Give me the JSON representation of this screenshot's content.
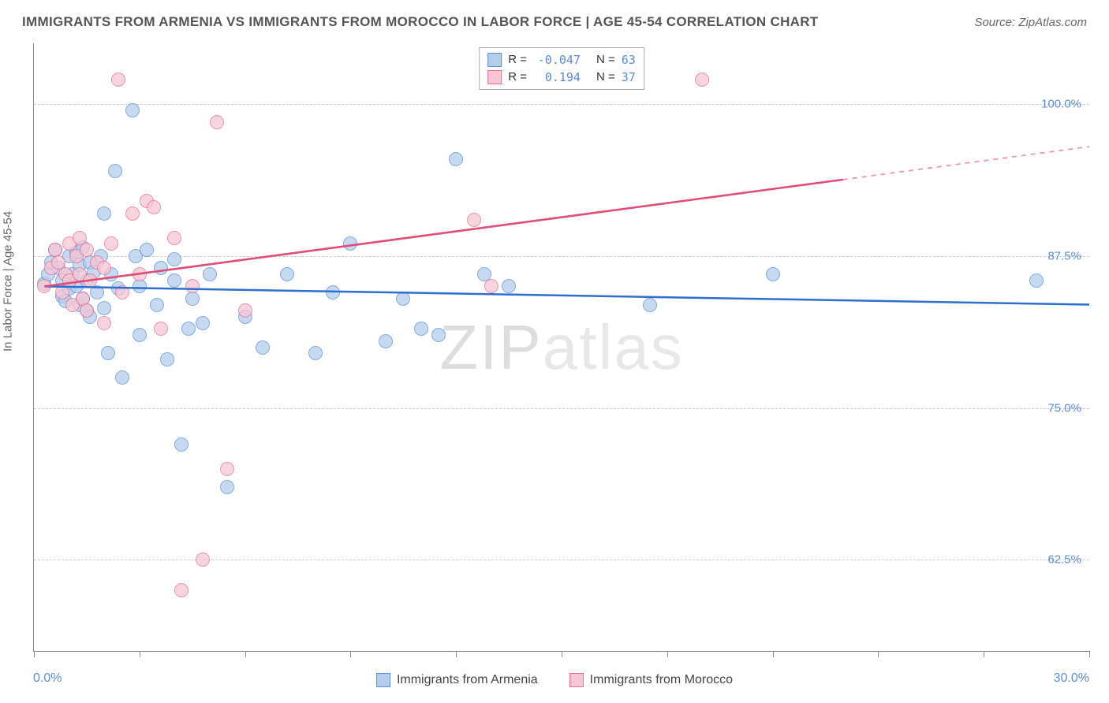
{
  "title": "IMMIGRANTS FROM ARMENIA VS IMMIGRANTS FROM MOROCCO IN LABOR FORCE | AGE 45-54 CORRELATION CHART",
  "source": "Source: ZipAtlas.com",
  "watermark": {
    "part1": "ZIP",
    "part2": "atlas"
  },
  "chart": {
    "type": "scatter",
    "background_color": "#ffffff",
    "grid_color": "#cccccc",
    "axis_color": "#888888",
    "label_color": "#5b8bd4",
    "xlim": [
      0,
      30
    ],
    "ylim": [
      55,
      105
    ],
    "x_ticks": [
      0,
      3,
      6,
      9,
      12,
      15,
      18,
      21,
      24,
      27,
      30
    ],
    "x_tick_labels": {
      "0": "0.0%",
      "30": "30.0%"
    },
    "y_gridlines": [
      62.5,
      75.0,
      87.5,
      100.0
    ],
    "y_tick_labels": [
      "62.5%",
      "75.0%",
      "87.5%",
      "100.0%"
    ],
    "y_axis_title": "In Labor Force | Age 45-54",
    "marker_radius": 9,
    "marker_border_width": 1.5,
    "series": [
      {
        "name": "Immigrants from Armenia",
        "fill_color": "#b4cdeb",
        "stroke_color": "#5a8fd6",
        "line_color": "#2d6fd0",
        "line_width": 2.5,
        "R": "-0.047",
        "N": "63",
        "trend": {
          "x1": 0.3,
          "y1": 85.0,
          "x2": 30,
          "y2": 83.5,
          "solid_until": 30
        },
        "points": [
          [
            0.3,
            85.2
          ],
          [
            0.4,
            86.0
          ],
          [
            0.5,
            87.0
          ],
          [
            0.6,
            88.0
          ],
          [
            0.7,
            86.5
          ],
          [
            0.8,
            85.5
          ],
          [
            0.8,
            84.2
          ],
          [
            0.9,
            83.8
          ],
          [
            1.0,
            87.5
          ],
          [
            1.0,
            84.8
          ],
          [
            1.1,
            86.0
          ],
          [
            1.2,
            87.8
          ],
          [
            1.2,
            85.0
          ],
          [
            1.3,
            83.5
          ],
          [
            1.3,
            86.8
          ],
          [
            1.4,
            88.2
          ],
          [
            1.4,
            84.0
          ],
          [
            1.5,
            85.5
          ],
          [
            1.5,
            83.0
          ],
          [
            1.6,
            87.0
          ],
          [
            1.6,
            82.5
          ],
          [
            1.7,
            86.2
          ],
          [
            1.8,
            84.5
          ],
          [
            1.9,
            87.5
          ],
          [
            2.0,
            91.0
          ],
          [
            2.0,
            83.2
          ],
          [
            2.1,
            79.5
          ],
          [
            2.2,
            86.0
          ],
          [
            2.3,
            94.5
          ],
          [
            2.4,
            84.8
          ],
          [
            2.5,
            77.5
          ],
          [
            2.8,
            99.5
          ],
          [
            2.9,
            87.5
          ],
          [
            3.0,
            85.0
          ],
          [
            3.0,
            81.0
          ],
          [
            3.2,
            88.0
          ],
          [
            3.5,
            83.5
          ],
          [
            3.6,
            86.5
          ],
          [
            3.8,
            79.0
          ],
          [
            4.0,
            85.5
          ],
          [
            4.0,
            87.2
          ],
          [
            4.2,
            72.0
          ],
          [
            4.4,
            81.5
          ],
          [
            4.5,
            84.0
          ],
          [
            4.8,
            82.0
          ],
          [
            5.0,
            86.0
          ],
          [
            5.5,
            68.5
          ],
          [
            6.0,
            82.5
          ],
          [
            6.5,
            80.0
          ],
          [
            7.2,
            86.0
          ],
          [
            8.0,
            79.5
          ],
          [
            8.5,
            84.5
          ],
          [
            9.0,
            88.5
          ],
          [
            10.0,
            80.5
          ],
          [
            10.5,
            84.0
          ],
          [
            11.0,
            81.5
          ],
          [
            11.5,
            81.0
          ],
          [
            12.0,
            95.5
          ],
          [
            12.8,
            86.0
          ],
          [
            13.5,
            85.0
          ],
          [
            17.5,
            83.5
          ],
          [
            21.0,
            86.0
          ],
          [
            28.5,
            85.5
          ]
        ]
      },
      {
        "name": "Immigrants from Morocco",
        "fill_color": "#f6c6d4",
        "stroke_color": "#e86e92",
        "line_color": "#e14b77",
        "line_width": 2.5,
        "R": "0.194",
        "N": "37",
        "trend": {
          "x1": 0.3,
          "y1": 85.0,
          "x2": 30,
          "y2": 96.5,
          "solid_until": 23
        },
        "points": [
          [
            0.3,
            85.0
          ],
          [
            0.5,
            86.5
          ],
          [
            0.6,
            88.0
          ],
          [
            0.7,
            87.0
          ],
          [
            0.8,
            84.5
          ],
          [
            0.9,
            86.0
          ],
          [
            1.0,
            88.5
          ],
          [
            1.0,
            85.5
          ],
          [
            1.1,
            83.5
          ],
          [
            1.2,
            87.5
          ],
          [
            1.3,
            86.0
          ],
          [
            1.3,
            89.0
          ],
          [
            1.4,
            84.0
          ],
          [
            1.5,
            88.0
          ],
          [
            1.5,
            83.0
          ],
          [
            1.6,
            85.5
          ],
          [
            1.8,
            87.0
          ],
          [
            2.0,
            82.0
          ],
          [
            2.0,
            86.5
          ],
          [
            2.2,
            88.5
          ],
          [
            2.4,
            102.0
          ],
          [
            2.5,
            84.5
          ],
          [
            2.8,
            91.0
          ],
          [
            3.0,
            86.0
          ],
          [
            3.2,
            92.0
          ],
          [
            3.4,
            91.5
          ],
          [
            3.6,
            81.5
          ],
          [
            4.0,
            89.0
          ],
          [
            4.2,
            60.0
          ],
          [
            4.5,
            85.0
          ],
          [
            4.8,
            62.5
          ],
          [
            5.2,
            98.5
          ],
          [
            5.5,
            70.0
          ],
          [
            6.0,
            83.0
          ],
          [
            12.5,
            90.5
          ],
          [
            13.0,
            85.0
          ],
          [
            19.0,
            102.0
          ]
        ]
      }
    ],
    "legend_top": {
      "border_color": "#aaaaaa",
      "rows": [
        {
          "swatch_fill": "#b4cdeb",
          "swatch_border": "#5a8fd6",
          "R_label": "R =",
          "R_val": "-0.047",
          "N_label": "N =",
          "N_val": "63"
        },
        {
          "swatch_fill": "#f6c6d4",
          "swatch_border": "#e86e92",
          "R_label": "R =",
          "R_val": " 0.194",
          "N_label": "N =",
          "N_val": "37"
        }
      ]
    },
    "legend_bottom": [
      {
        "swatch_fill": "#b4cdeb",
        "swatch_border": "#5a8fd6",
        "label": "Immigrants from Armenia"
      },
      {
        "swatch_fill": "#f6c6d4",
        "swatch_border": "#e86e92",
        "label": "Immigrants from Morocco"
      }
    ]
  }
}
